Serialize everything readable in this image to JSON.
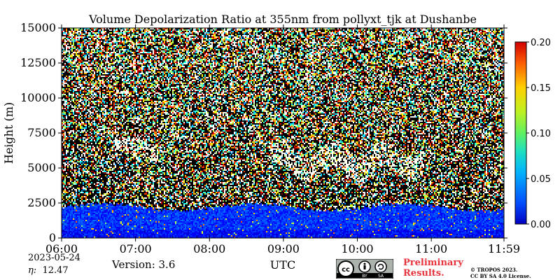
{
  "chart_data": {
    "type": "heatmap",
    "title": "Volume Depolarization Ratio at 355nm from pollyxt_tjk at Dushanbe",
    "xlabel": "UTC",
    "ylabel": "Height (m)",
    "x_tick_labels": [
      "06:00",
      "07:00",
      "08:00",
      "09:00",
      "10:00",
      "11:00",
      "11:59"
    ],
    "x_tick_hours": [
      6,
      7,
      8,
      9,
      10,
      11,
      11.983
    ],
    "xlim_hours": [
      6,
      11.983
    ],
    "y_ticks": [
      0,
      2500,
      5000,
      7500,
      10000,
      12500,
      15000
    ],
    "y_tick_labels": [
      "0",
      "2500",
      "5000",
      "7500",
      "10000",
      "12500",
      "15000"
    ],
    "ylim": [
      0,
      15000
    ],
    "colorbar": {
      "colormap": "jet",
      "range": [
        0,
        0.2
      ],
      "ticks": [
        0,
        0.05,
        0.1,
        0.15,
        0.2
      ],
      "tick_labels": [
        "0.00",
        "0.05",
        "0.10",
        "0.15",
        "0.20"
      ]
    },
    "features": [
      {
        "description_type": "boundary_layer",
        "height_top": 2200,
        "typical_value": 0.035
      },
      {
        "description_type": "depolarizing_layer",
        "time_start": 6.7,
        "time_end": 7.3,
        "height_bottom": 5500,
        "height_top": 7200,
        "typical_value": 0.2
      },
      {
        "description_type": "depolarizing_layer",
        "time_start": 8.8,
        "time_end": 10.9,
        "height_bottom": 4000,
        "height_top": 7000,
        "typical_value": 0.2
      }
    ]
  },
  "footer": {
    "date": "2023-05-24",
    "eta_symbol": "η:",
    "eta_value": "12.47",
    "version": "Version: 3.6",
    "license_badge": {
      "icon_name": "cc-by-sa-icon",
      "by": "BY",
      "sa": "SA"
    },
    "preliminary": "Preliminary\nResults.",
    "copyright": "© TROPOS 2023.\nCC BY SA 4.0 License."
  }
}
